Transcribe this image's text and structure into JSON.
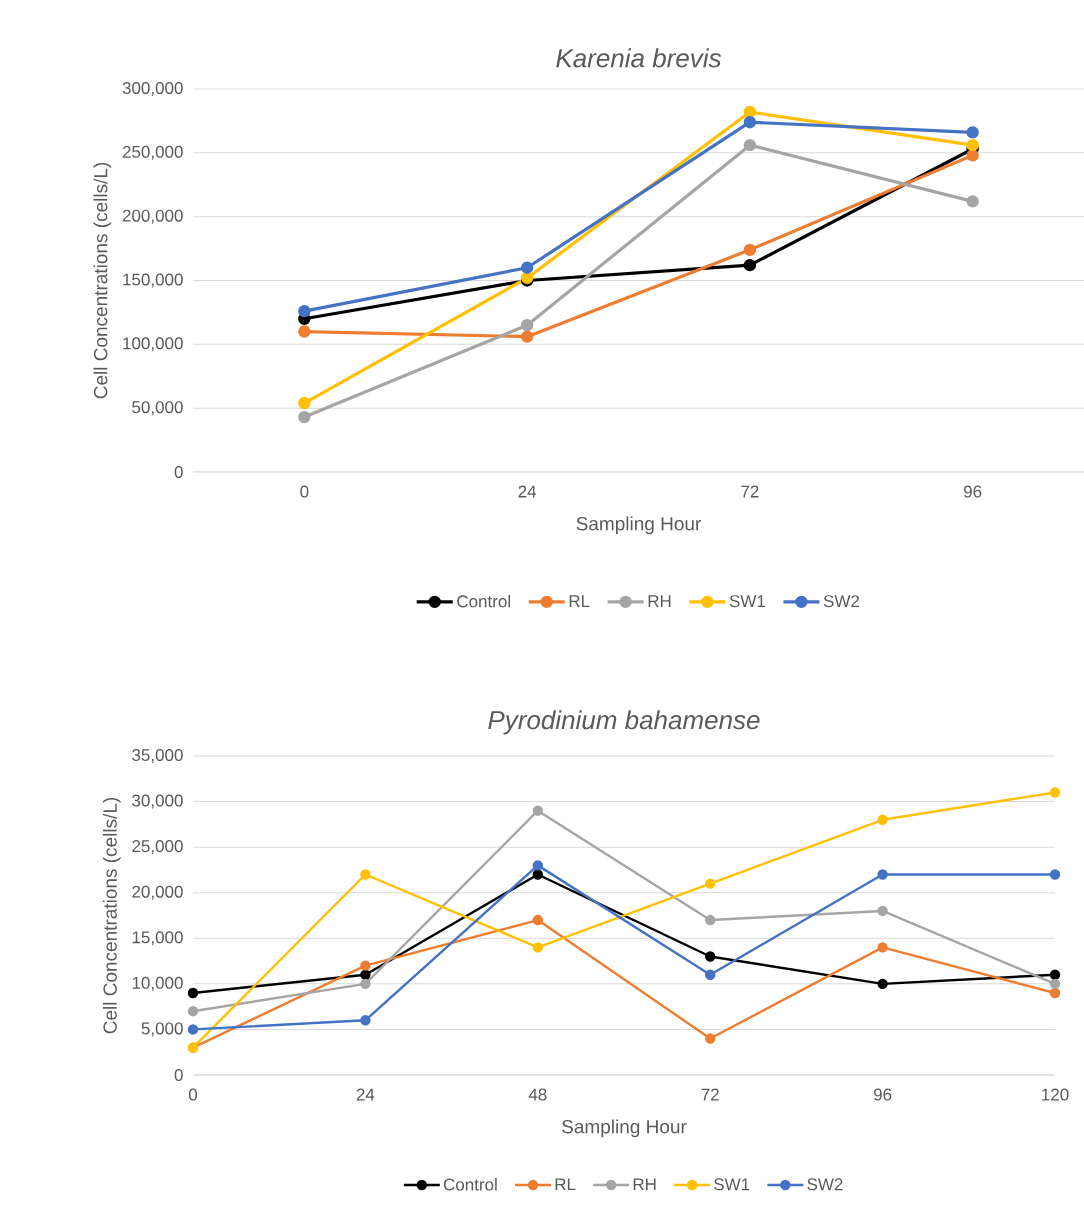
{
  "chart_data": [
    {
      "type": "line",
      "title": "Karenia brevis",
      "xlabel": "Sampling Hour",
      "ylabel": "Cell Concentrations (cells/L)",
      "categories": [
        "0",
        "24",
        "72",
        "96"
      ],
      "series": [
        {
          "name": "Control",
          "color": "#000000",
          "values": [
            120000,
            150000,
            162000,
            253000
          ]
        },
        {
          "name": "RL",
          "color": "#ed7d31",
          "values": [
            110000,
            106000,
            174000,
            248000
          ]
        },
        {
          "name": "RH",
          "color": "#a5a5a5",
          "values": [
            43000,
            115000,
            256000,
            212000
          ]
        },
        {
          "name": "SW1",
          "color": "#ffc000",
          "values": [
            54000,
            152000,
            282000,
            256000
          ]
        },
        {
          "name": "SW2",
          "color": "#4472c4",
          "values": [
            126000,
            160000,
            274000,
            266000
          ]
        }
      ],
      "ylim": [
        0,
        300000
      ],
      "yticks": [
        0,
        {
          "value": 50000,
          "label": "50,000"
        },
        {
          "value": 100000,
          "label": "100,000"
        },
        {
          "value": 150000,
          "label": "150,000"
        },
        {
          "value": 200000,
          "label": "200,000"
        },
        {
          "value": 250000,
          "label": "250,000"
        },
        {
          "value": 300000,
          "label": "300,000"
        }
      ],
      "grid": "y",
      "legend": "bottom",
      "marker": "circle"
    },
    {
      "type": "line",
      "title": "Pyrodinium bahamense",
      "xlabel": "Sampling Hour",
      "ylabel": "Cell Concentrations (cells/L)",
      "categories": [
        "0",
        "24",
        "48",
        "72",
        "96",
        "120"
      ],
      "series": [
        {
          "name": "Control",
          "color": "#000000",
          "values": [
            9000,
            11000,
            22000,
            13000,
            10000,
            11000
          ]
        },
        {
          "name": "RL",
          "color": "#ed7d31",
          "values": [
            3000,
            12000,
            17000,
            4000,
            14000,
            9000
          ]
        },
        {
          "name": "RH",
          "color": "#a5a5a5",
          "values": [
            7000,
            10000,
            29000,
            17000,
            18000,
            10000
          ]
        },
        {
          "name": "SW1",
          "color": "#ffc000",
          "values": [
            3000,
            22000,
            14000,
            21000,
            28000,
            31000
          ]
        },
        {
          "name": "SW2",
          "color": "#4472c4",
          "values": [
            5000,
            6000,
            23000,
            11000,
            22000,
            22000
          ]
        }
      ],
      "ylim": [
        0,
        35000
      ],
      "yticks": [
        0,
        {
          "value": 5000,
          "label": "5,000"
        },
        {
          "value": 10000,
          "label": "10,000"
        },
        {
          "value": 15000,
          "label": "15,000"
        },
        {
          "value": 20000,
          "label": "20,000"
        },
        {
          "value": 25000,
          "label": "25,000"
        },
        {
          "value": 30000,
          "label": "30,000"
        },
        {
          "value": 35000,
          "label": "35,000"
        }
      ],
      "grid": "y",
      "legend": "bottom",
      "marker": "circle"
    }
  ]
}
